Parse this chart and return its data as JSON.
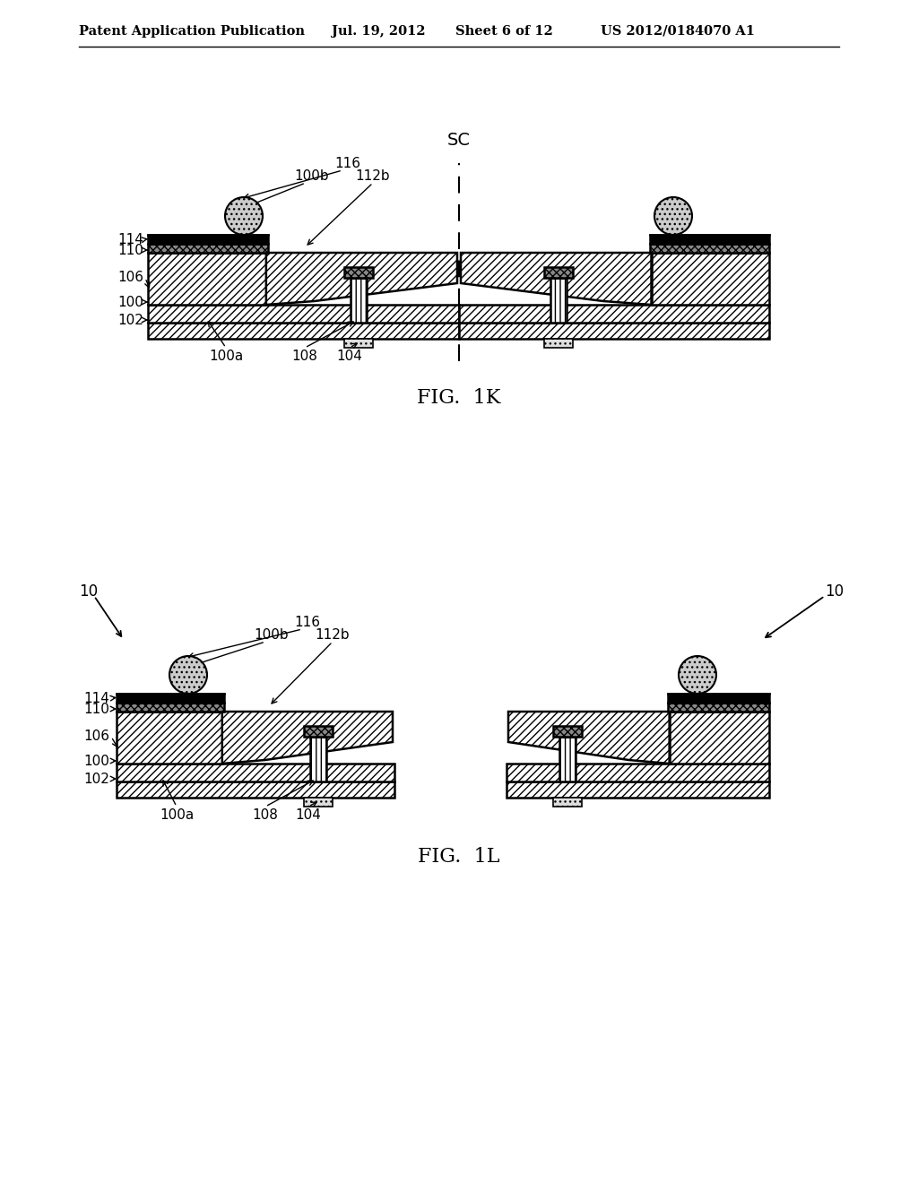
{
  "bg_color": "#ffffff",
  "line_color": "#000000",
  "header_text": "Patent Application Publication",
  "header_date": "Jul. 19, 2012",
  "header_sheet": "Sheet 6 of 12",
  "header_patent": "US 2012/0184070 A1",
  "fig1k_label": "FIG.  1K",
  "fig1l_label": "FIG.  1L",
  "sc_label": "SC"
}
